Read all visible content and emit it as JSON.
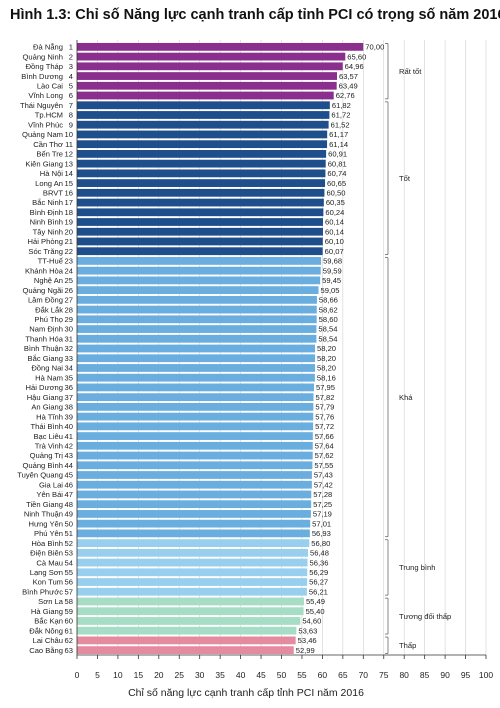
{
  "chart_data": {
    "type": "bar",
    "orientation": "horizontal",
    "title": "Hình 1.3: Chỉ số Năng lực cạnh tranh cấp tỉnh PCI có trọng số năm 2016",
    "xlabel": "Chỉ số năng lực cạnh tranh cấp tỉnh PCI năm 2016",
    "xlim": [
      0,
      100
    ],
    "xticks": [
      0,
      5,
      10,
      15,
      20,
      25,
      30,
      35,
      40,
      45,
      50,
      55,
      60,
      65,
      70,
      75,
      80,
      85,
      90,
      95,
      100
    ],
    "categories": [
      "Đà Nẵng",
      "Quảng Ninh",
      "Đồng Tháp",
      "Bình Dương",
      "Lào Cai",
      "Vĩnh Long",
      "Thái Nguyên",
      "Tp.HCM",
      "Vĩnh Phúc",
      "Quảng Nam",
      "Cần Thơ",
      "Bến Tre",
      "Kiên Giang",
      "Hà Nội",
      "Long An",
      "BRVT",
      "Bắc Ninh",
      "Bình Định",
      "Ninh Bình",
      "Tây Ninh",
      "Hải Phòng",
      "Sóc Trăng",
      "TT-Huế",
      "Khánh Hòa",
      "Nghệ An",
      "Quảng Ngãi",
      "Lâm Đồng",
      "Đắk Lắk",
      "Phú Thọ",
      "Nam Định",
      "Thanh Hóa",
      "Bình Thuận",
      "Bắc Giang",
      "Đồng Nai",
      "Hà Nam",
      "Hải Dương",
      "Hậu Giang",
      "An Giang",
      "Hà Tĩnh",
      "Thái Bình",
      "Bạc Liêu",
      "Trà Vinh",
      "Quảng Trị",
      "Quảng Bình",
      "Tuyên Quang",
      "Gia Lai",
      "Yên Bái",
      "Tiền Giang",
      "Ninh Thuận",
      "Hưng Yên",
      "Phú Yên",
      "Hòa Bình",
      "Điện Biên",
      "Cà Mau",
      "Lạng Sơn",
      "Kon Tum",
      "Bình Phước",
      "Sơn La",
      "Hà Giang",
      "Bắc Kạn",
      "Đắk Nông",
      "Lai Châu",
      "Cao Bằng"
    ],
    "ranks": [
      1,
      2,
      3,
      4,
      5,
      6,
      7,
      8,
      9,
      10,
      11,
      12,
      13,
      14,
      15,
      16,
      17,
      18,
      19,
      20,
      21,
      22,
      23,
      24,
      25,
      26,
      27,
      28,
      29,
      30,
      31,
      32,
      33,
      34,
      35,
      36,
      37,
      38,
      39,
      40,
      41,
      42,
      43,
      44,
      45,
      46,
      47,
      48,
      49,
      50,
      51,
      52,
      53,
      54,
      55,
      56,
      57,
      58,
      59,
      60,
      61,
      62,
      63
    ],
    "values": [
      70.0,
      65.6,
      64.96,
      63.57,
      63.49,
      62.76,
      61.82,
      61.72,
      61.52,
      61.17,
      61.14,
      60.91,
      60.81,
      60.74,
      60.65,
      60.5,
      60.35,
      60.24,
      60.14,
      60.14,
      60.1,
      60.07,
      59.68,
      59.59,
      59.45,
      59.05,
      58.66,
      58.62,
      58.6,
      58.54,
      58.54,
      58.2,
      58.2,
      58.2,
      58.16,
      57.95,
      57.82,
      57.79,
      57.76,
      57.72,
      57.66,
      57.64,
      57.62,
      57.55,
      57.43,
      57.42,
      57.28,
      57.25,
      57.19,
      57.01,
      56.93,
      56.8,
      56.48,
      56.36,
      56.29,
      56.27,
      56.21,
      55.49,
      55.4,
      54.6,
      53.63,
      53.46,
      52.99
    ],
    "value_labels": [
      "70,00",
      "65,60",
      "64,96",
      "63,57",
      "63,49",
      "62,76",
      "61,82",
      "61,72",
      "61,52",
      "61,17",
      "61,14",
      "60,91",
      "60,81",
      "60,74",
      "60,65",
      "60,50",
      "60,35",
      "60,24",
      "60,14",
      "60,14",
      "60,10",
      "60,07",
      "59,68",
      "59,59",
      "59,45",
      "59,05",
      "58,66",
      "58,62",
      "58,60",
      "58,54",
      "58,54",
      "58,20",
      "58,20",
      "58,20",
      "58,16",
      "57,95",
      "57,82",
      "57,79",
      "57,76",
      "57,72",
      "57,66",
      "57,64",
      "57,62",
      "57,55",
      "57,43",
      "57,42",
      "57,28",
      "57,25",
      "57,19",
      "57,01",
      "56,93",
      "56,80",
      "56,48",
      "56,36",
      "56,29",
      "56,27",
      "56,21",
      "55,49",
      "55,40",
      "54,60",
      "53,63",
      "53,46",
      "52,99"
    ],
    "groups": [
      {
        "name": "Rất tốt",
        "count": 6,
        "color": "#8a2f8e"
      },
      {
        "name": "Tốt",
        "count": 16,
        "color": "#1f4e8c"
      },
      {
        "name": "Khá",
        "count": 29,
        "color": "#6aaee0"
      },
      {
        "name": "Trung bình",
        "count": 6,
        "color": "#98cfee"
      },
      {
        "name": "Tương đối thấp",
        "count": 4,
        "color": "#a7dcc6"
      },
      {
        "name": "Thấp",
        "count": 2,
        "color": "#e48ba0"
      }
    ],
    "grid": true,
    "axis_color": "#333333",
    "grid_color": "#d0d0d0"
  }
}
